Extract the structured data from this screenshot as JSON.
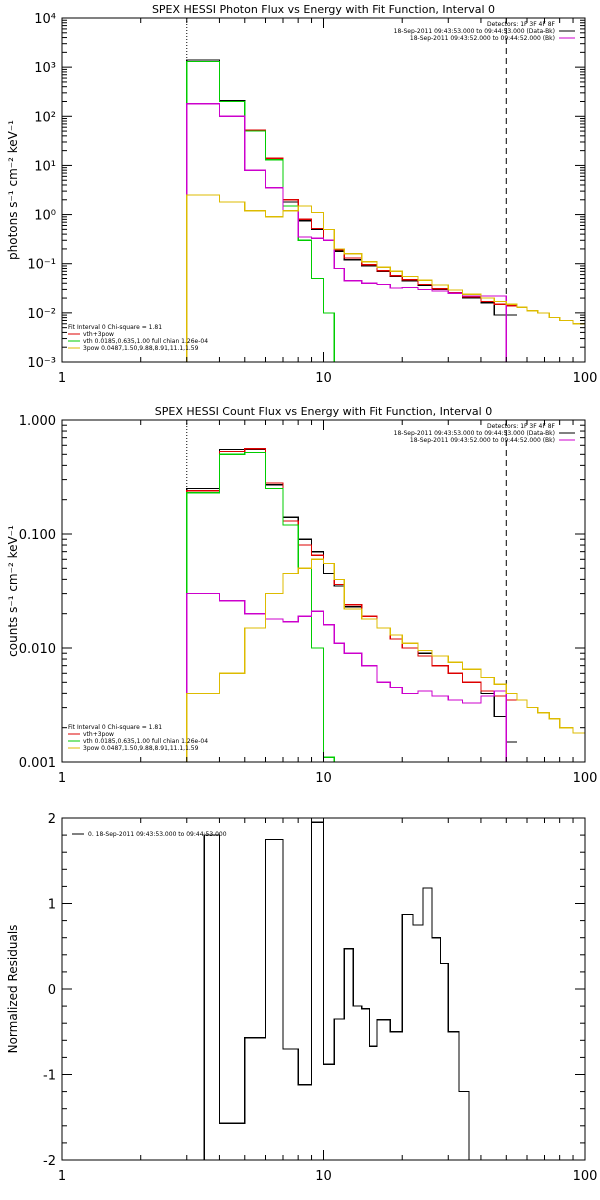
{
  "chart_data": [
    {
      "type": "line",
      "title": "SPEX HESSI Photon Flux vs Energy with Fit Function, Interval 0",
      "ylabel": "photons s⁻¹ cm⁻² keV⁻¹",
      "xlabel": "",
      "xscale": "log",
      "yscale": "log",
      "xlim": [
        1,
        100
      ],
      "ylim": [
        0.001,
        10000
      ],
      "x_tick_labels": [
        "1",
        "10",
        "100"
      ],
      "x_tick_values": [
        1,
        10,
        100
      ],
      "y_tick_labels": [
        "10⁻³",
        "10⁻²",
        "10⁻¹",
        "10⁰",
        "10¹",
        "10²",
        "10³",
        "10⁴"
      ],
      "y_tick_values": [
        0.001,
        0.01,
        0.1,
        1,
        10,
        100,
        1000,
        10000
      ],
      "vlines": [
        {
          "x": 3,
          "style": "dotted",
          "color": "#000000"
        },
        {
          "x": 50,
          "style": "dashed",
          "color": "#000000"
        }
      ],
      "legend_topright": [
        {
          "text": "Detectors: 1F 3F 4F 8F",
          "color": ""
        },
        {
          "text": "18-Sep-2011 09:43:53.000 to 09:44:53.000 (Data-Bk)",
          "color": "#000000"
        },
        {
          "text": "18-Sep-2011 09:43:52.000 to 09:44:52.000 (Bk)",
          "color": "#cc00cc"
        }
      ],
      "legend_bottomleft": [
        {
          "text": "Fit Interval 0   Chi-square = 1.81",
          "color": ""
        },
        {
          "text": "vth+3pow",
          "color": "#dd0000"
        },
        {
          "text": "vth 0.0185,0.635,1.00  full chian 1.26e-04",
          "color": "#00cc00"
        },
        {
          "text": "3pow 0.0487,1.50,9.88,8.91,11.1,1.59",
          "color": "#ddbb00"
        }
      ],
      "series": [
        {
          "color": "#000000",
          "x": [
            3,
            4,
            5,
            6,
            7,
            8,
            9,
            10,
            11,
            12,
            14,
            16,
            18,
            20,
            23,
            26,
            30,
            34,
            40,
            45,
            50
          ],
          "values": [
            1400,
            210,
            50,
            13,
            1.8,
            0.75,
            0.5,
            0.3,
            0.18,
            0.12,
            0.09,
            0.07,
            0.055,
            0.045,
            0.036,
            0.03,
            0.025,
            0.02,
            0.016,
            0.009,
            0.009
          ]
        },
        {
          "color": "#dd0000",
          "x": [
            3,
            4,
            5,
            6,
            7,
            8,
            9,
            10,
            11,
            12,
            14,
            16,
            18,
            20,
            23,
            26,
            30,
            34,
            40,
            45,
            50
          ],
          "values": [
            1300,
            200,
            52,
            14,
            2.0,
            0.8,
            0.52,
            0.3,
            0.19,
            0.13,
            0.095,
            0.072,
            0.057,
            0.047,
            0.038,
            0.031,
            0.026,
            0.021,
            0.017,
            0.015,
            0.014
          ]
        },
        {
          "color": "#00cc00",
          "x": [
            3,
            4,
            5,
            6,
            7,
            8,
            9,
            10,
            11
          ],
          "values": [
            1300,
            200,
            50,
            13,
            1.5,
            0.3,
            0.05,
            0.01,
            0.001
          ]
        },
        {
          "color": "#cc00cc",
          "x": [
            3,
            4,
            5,
            6,
            7,
            8,
            9,
            10,
            11,
            12,
            14,
            16,
            18,
            20,
            23,
            26,
            30,
            34,
            40,
            45,
            50
          ],
          "values": [
            180,
            100,
            8,
            3.5,
            1.2,
            0.35,
            0.33,
            0.3,
            0.08,
            0.045,
            0.04,
            0.038,
            0.032,
            0.033,
            0.03,
            0.028,
            0.025,
            0.022,
            0.022,
            0.022,
            0.001
          ]
        },
        {
          "color": "#ddbb00",
          "x": [
            3,
            4,
            5,
            6,
            7,
            8,
            9,
            10,
            11,
            12,
            14,
            16,
            18,
            20,
            23,
            26,
            30,
            34,
            40,
            45,
            50,
            55,
            60,
            66,
            73,
            80,
            90,
            100
          ],
          "values": [
            2.5,
            1.8,
            1.2,
            0.9,
            1.2,
            1.5,
            1.1,
            0.5,
            0.2,
            0.16,
            0.11,
            0.085,
            0.07,
            0.055,
            0.046,
            0.037,
            0.029,
            0.024,
            0.02,
            0.017,
            0.015,
            0.013,
            0.011,
            0.01,
            0.008,
            0.007,
            0.006,
            0.006
          ]
        }
      ]
    },
    {
      "type": "line",
      "title": "SPEX HESSI Count Flux vs Energy with Fit Function, Interval 0",
      "ylabel": "counts s⁻¹ cm⁻² keV⁻¹",
      "xlabel": "",
      "xscale": "log",
      "yscale": "log",
      "xlim": [
        1,
        100
      ],
      "ylim": [
        0.001,
        1
      ],
      "x_tick_labels": [
        "1",
        "10",
        "100"
      ],
      "x_tick_values": [
        1,
        10,
        100
      ],
      "y_tick_labels": [
        "0.001",
        "0.010",
        "0.100",
        "1.000"
      ],
      "y_tick_values": [
        0.001,
        0.01,
        0.1,
        1
      ],
      "vlines": [
        {
          "x": 3,
          "style": "dotted",
          "color": "#000000"
        },
        {
          "x": 50,
          "style": "dashed",
          "color": "#000000"
        }
      ],
      "legend_topright": [
        {
          "text": "Detectors: 1F 3F 4F 8F",
          "color": ""
        },
        {
          "text": "18-Sep-2011 09:43:53.000 to 09:44:53.000 (Data-Bk)",
          "color": "#000000"
        },
        {
          "text": "18-Sep-2011 09:43:52.000 to 09:44:52.000 (Bk)",
          "color": "#cc00cc"
        }
      ],
      "legend_bottomleft": [
        {
          "text": "Fit Interval 0   Chi-square = 1.81",
          "color": ""
        },
        {
          "text": "vth+3pow",
          "color": "#dd0000"
        },
        {
          "text": "vth 0.0185,0.635,1.00  full chian 1.26e-04",
          "color": "#00cc00"
        },
        {
          "text": "3pow 0.0487,1.50,9.88,8.91,11.1,1.59",
          "color": "#ddbb00"
        }
      ],
      "series": [
        {
          "color": "#000000",
          "x": [
            3,
            4,
            5,
            6,
            7,
            8,
            9,
            10,
            11,
            12,
            14,
            16,
            18,
            20,
            23,
            26,
            30,
            34,
            40,
            45,
            50
          ],
          "values": [
            0.25,
            0.55,
            0.55,
            0.27,
            0.14,
            0.09,
            0.07,
            0.045,
            0.035,
            0.023,
            0.018,
            0.015,
            0.012,
            0.01,
            0.009,
            0.007,
            0.006,
            0.005,
            0.004,
            0.0025,
            0.0015
          ]
        },
        {
          "color": "#dd0000",
          "x": [
            3,
            4,
            5,
            6,
            7,
            8,
            9,
            10,
            11,
            12,
            14,
            16,
            18,
            20,
            23,
            26,
            30,
            34,
            40,
            45,
            50
          ],
          "values": [
            0.24,
            0.53,
            0.56,
            0.28,
            0.13,
            0.08,
            0.065,
            0.055,
            0.036,
            0.024,
            0.019,
            0.015,
            0.012,
            0.01,
            0.0085,
            0.007,
            0.006,
            0.005,
            0.0042,
            0.0038,
            0.0035
          ]
        },
        {
          "color": "#00cc00",
          "x": [
            3,
            4,
            5,
            6,
            7,
            8,
            9,
            10,
            11
          ],
          "values": [
            0.23,
            0.5,
            0.52,
            0.25,
            0.12,
            0.05,
            0.01,
            0.0011,
            0.001
          ]
        },
        {
          "color": "#cc00cc",
          "x": [
            3,
            4,
            5,
            6,
            7,
            8,
            9,
            10,
            11,
            12,
            14,
            16,
            18,
            20,
            23,
            26,
            30,
            34,
            40,
            45,
            50
          ],
          "values": [
            0.03,
            0.026,
            0.02,
            0.018,
            0.017,
            0.019,
            0.021,
            0.016,
            0.011,
            0.009,
            0.007,
            0.005,
            0.0045,
            0.004,
            0.0042,
            0.0038,
            0.0035,
            0.0033,
            0.0038,
            0.0042,
            0.001
          ]
        },
        {
          "color": "#ddbb00",
          "x": [
            3,
            4,
            5,
            6,
            7,
            8,
            9,
            10,
            11,
            12,
            14,
            16,
            18,
            20,
            23,
            26,
            30,
            34,
            40,
            45,
            50,
            55,
            60,
            66,
            73,
            80,
            90,
            100
          ],
          "values": [
            0.004,
            0.006,
            0.015,
            0.03,
            0.045,
            0.05,
            0.06,
            0.055,
            0.04,
            0.022,
            0.018,
            0.015,
            0.013,
            0.011,
            0.0095,
            0.0085,
            0.0075,
            0.0065,
            0.0055,
            0.0048,
            0.004,
            0.0035,
            0.003,
            0.0027,
            0.0024,
            0.002,
            0.0018,
            0.0016
          ]
        }
      ]
    },
    {
      "type": "line",
      "title": "",
      "ylabel": "Normalized Residuals",
      "xlabel": "",
      "xscale": "log",
      "yscale": "linear",
      "xlim": [
        1,
        100
      ],
      "ylim": [
        -2,
        2
      ],
      "x_tick_labels": [
        "1",
        "10",
        "100"
      ],
      "x_tick_values": [
        1,
        10,
        100
      ],
      "y_tick_labels": [
        "-2",
        "-1",
        "0",
        "1",
        "2"
      ],
      "y_tick_values": [
        -2,
        -1,
        0,
        1,
        2
      ],
      "legend_topright": [],
      "legend_bottomleft": [],
      "legend_topleft": [
        {
          "text": "0. 18-Sep-2011 09:43:53.000 to 09:44:53.000",
          "color": "#000000"
        }
      ],
      "series": [
        {
          "color": "#000000",
          "x": [
            3,
            3.5,
            4,
            5,
            6,
            7,
            8,
            9,
            10,
            11,
            12,
            13,
            14,
            15,
            16,
            18,
            20,
            22,
            24,
            26,
            28,
            30,
            33,
            36,
            40,
            45,
            50
          ],
          "values": [
            -2,
            1.8,
            -1.57,
            -0.57,
            1.75,
            -0.7,
            -1.12,
            1.95,
            -0.88,
            -0.35,
            0.47,
            -0.2,
            -0.23,
            -0.67,
            -0.36,
            -0.5,
            0.87,
            0.75,
            1.18,
            0.6,
            0.3,
            -0.5,
            -1.2,
            -2,
            -2,
            -2,
            -2
          ]
        }
      ]
    }
  ]
}
